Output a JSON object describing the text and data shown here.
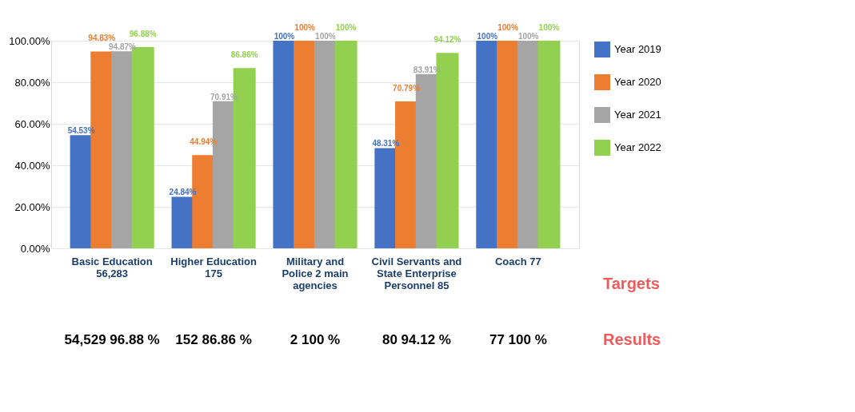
{
  "chart_data": {
    "type": "bar",
    "categories": [
      "Basic Education 56,283",
      "Higher Education 175",
      "Military and Police 2 main agencies",
      "Civil Servants and State Enterprise Personnel 85",
      "Coach 77"
    ],
    "series": [
      {
        "name": "Year 2019",
        "color": "#4472c4",
        "values": [
          54.53,
          24.84,
          100,
          48.31,
          100
        ],
        "value_labels": [
          "54.53%",
          "24.84%",
          "100%",
          "48.31%",
          "100%"
        ]
      },
      {
        "name": "Year 2020",
        "color": "#ed7d31",
        "values": [
          94.83,
          44.94,
          100,
          70.79,
          100
        ],
        "value_labels": [
          "94.83%",
          "44.94%",
          "100%",
          "70.79%",
          "100%"
        ]
      },
      {
        "name": "Year 2021",
        "color": "#a5a5a5",
        "values": [
          94.87,
          70.91,
          100,
          83.91,
          100
        ],
        "value_labels": [
          "94.87%",
          "70.91%",
          "100%",
          "83.91%",
          "100%"
        ]
      },
      {
        "name": "Year 2022",
        "color": "#92d050",
        "values": [
          96.88,
          86.86,
          100,
          94.12,
          100
        ],
        "value_labels": [
          "96.88%",
          "86.86%",
          "100%",
          "94.12%",
          "100%"
        ]
      }
    ],
    "ylim": [
      0,
      100
    ],
    "yticks": [
      {
        "value": 0,
        "label": "0.00%"
      },
      {
        "value": 20,
        "label": "20.00%"
      },
      {
        "value": 40,
        "label": "40.00%"
      },
      {
        "value": 60,
        "label": "60.00%"
      },
      {
        "value": 80,
        "label": "80.00%"
      },
      {
        "value": 100,
        "label": "100.00%"
      }
    ],
    "grid": "y",
    "legend": "right",
    "annotations": [
      "54,529 96.88 %",
      "152 86.86 %",
      "2 100 %",
      "80 94.12 %",
      "77 100 %",
      "Targets",
      "Results"
    ]
  }
}
